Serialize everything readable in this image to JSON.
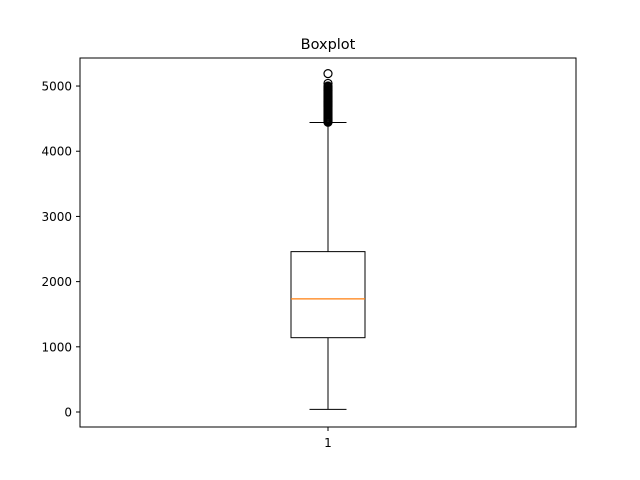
{
  "chart_data": {
    "type": "box",
    "title": "Boxplot",
    "xlabel": "",
    "ylabel": "",
    "categories": [
      "1"
    ],
    "ylim": [
      -230,
      5430
    ],
    "yticks": [
      0,
      1000,
      2000,
      3000,
      4000,
      5000
    ],
    "ytick_labels": [
      "0",
      "1000",
      "2000",
      "3000",
      "4000",
      "5000"
    ],
    "xtick_labels": [
      "1"
    ],
    "grid": false,
    "boxes": [
      {
        "category": "1",
        "whisker_low": 40,
        "q1": 1140,
        "median": 1735,
        "q3": 2460,
        "whisker_high": 4440,
        "fliers": [
          4445,
          4460,
          4475,
          4490,
          4505,
          4520,
          4535,
          4550,
          4565,
          4580,
          4595,
          4610,
          4625,
          4640,
          4655,
          4670,
          4685,
          4700,
          4715,
          4730,
          4745,
          4760,
          4775,
          4790,
          4805,
          4820,
          4835,
          4850,
          4865,
          4880,
          4895,
          4910,
          4925,
          4940,
          4955,
          4970,
          4985,
          5000,
          5040,
          5190
        ]
      }
    ],
    "colors": {
      "box": "#000000",
      "median": "#ff7f0e",
      "whisker": "#000000",
      "flier": "#000000"
    }
  }
}
